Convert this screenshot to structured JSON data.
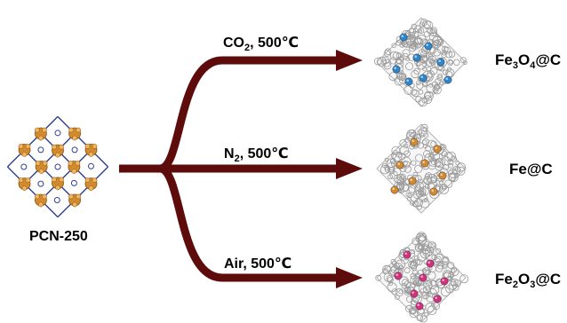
{
  "precursor": {
    "label": "PCN-250"
  },
  "routes": [
    {
      "condition": {
        "gas_main": "CO",
        "gas_sub": "2",
        "temp": ", 500℃"
      },
      "product": [
        {
          "t": "Fe"
        },
        {
          "t": "3",
          "sub": true
        },
        {
          "t": "O"
        },
        {
          "t": "4",
          "sub": true
        },
        {
          "t": "@C"
        }
      ],
      "particle_color": "#2a86cf"
    },
    {
      "condition": {
        "gas_main": "N",
        "gas_sub": "2",
        "temp": ", 500℃"
      },
      "product": [
        {
          "t": "Fe@C"
        }
      ],
      "particle_color": "#d5892c"
    },
    {
      "condition": {
        "gas_main": "Air",
        "gas_sub": "",
        "temp": ", 500℃"
      },
      "product": [
        {
          "t": "Fe"
        },
        {
          "t": "2",
          "sub": true
        },
        {
          "t": "O"
        },
        {
          "t": "3",
          "sub": true
        },
        {
          "t": "@C"
        }
      ],
      "particle_color": "#d5307d"
    }
  ],
  "colors": {
    "arrow": "#5e0b0b",
    "mof_node": "#d28a2e",
    "linker": "#2f3f8f",
    "carbon": "#9a9a9a"
  }
}
